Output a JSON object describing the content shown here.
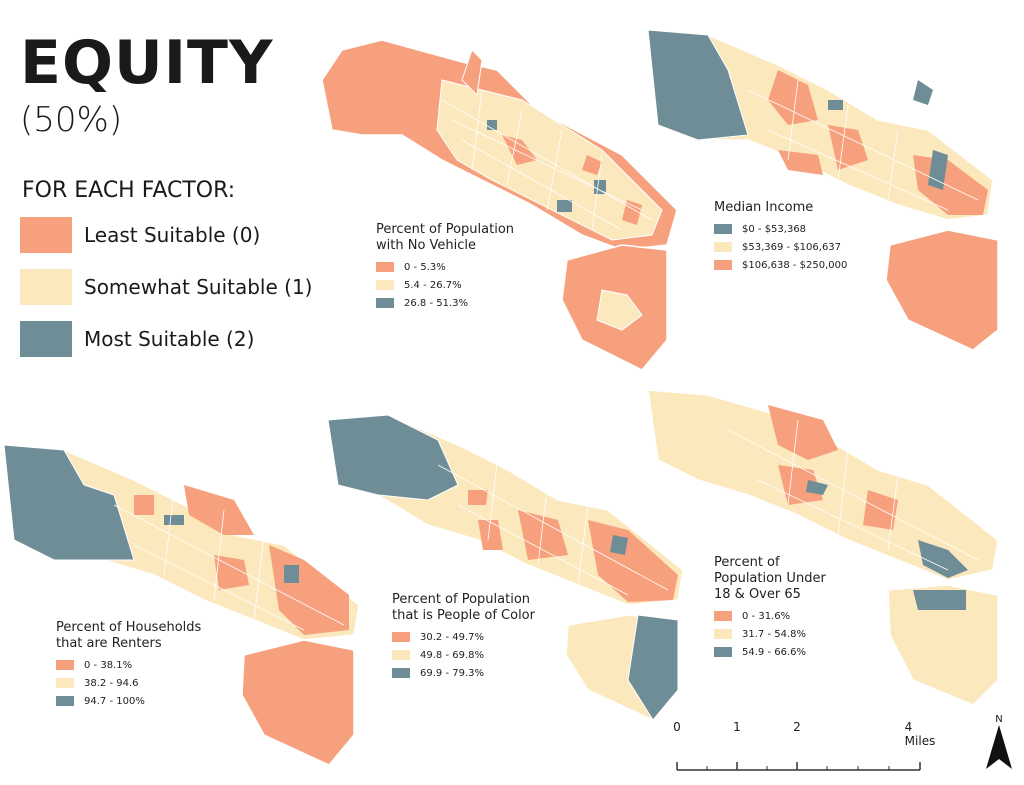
{
  "header": {
    "title": "EQUITY",
    "subtitle": "(50%)"
  },
  "factor_key": {
    "heading": "FOR EACH FACTOR:",
    "items": [
      {
        "label": "Least Suitable (0)",
        "color": "#f7a07d"
      },
      {
        "label": "Somewhat Suitable (1)",
        "color": "#fbe8bd"
      },
      {
        "label": "Most Suitable (2)",
        "color": "#6f8d96"
      }
    ]
  },
  "colors": {
    "least": "#f7a07d",
    "somewhat": "#fbe8bd",
    "most": "#6f8d96",
    "street": "#ffffff"
  },
  "maps": {
    "vehicle": {
      "title": "Percent of Population with No Vehicle",
      "title_lines": [
        "Percent of Population",
        "with No Vehicle"
      ],
      "classes": [
        "0 - 5.3%",
        "5.4 - 26.7%",
        "26.8 - 51.3%"
      ]
    },
    "income": {
      "title": "Median Income",
      "title_lines": [
        "Median Income"
      ],
      "classes": [
        "$0 - $53,368",
        "$53,369 - $106,637",
        "$106,638 - $250,000"
      ]
    },
    "renters": {
      "title": "Percent of Households that are Renters",
      "title_lines": [
        "Percent of Households",
        "that are Renters"
      ],
      "classes": [
        "0 - 38.1%",
        "38.2 - 94.6",
        "94.7 - 100%"
      ]
    },
    "poc": {
      "title": "Percent of Population that is People of Color",
      "title_lines": [
        "Percent of Population",
        "that is People of Color"
      ],
      "classes": [
        "30.2 - 49.7%",
        "49.8 - 69.8%",
        "69.9 - 79.3%"
      ]
    },
    "age": {
      "title": "Percent of Population Under 18 & Over 65",
      "title_lines": [
        "Percent of",
        "Population Under",
        "18 & Over 65"
      ],
      "classes": [
        "0 - 31.6%",
        "31.7 - 54.8%",
        "54.9 - 66.6%"
      ]
    }
  },
  "scale_bar": {
    "ticks": [
      "0",
      "1",
      "2",
      "4 Miles"
    ]
  },
  "north_arrow": {
    "label": "N"
  }
}
